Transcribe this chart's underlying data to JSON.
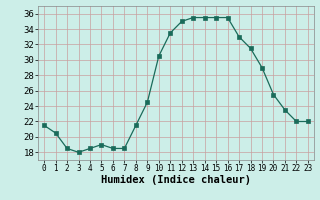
{
  "x": [
    0,
    1,
    2,
    3,
    4,
    5,
    6,
    7,
    8,
    9,
    10,
    11,
    12,
    13,
    14,
    15,
    16,
    17,
    18,
    19,
    20,
    21,
    22,
    23
  ],
  "y": [
    21.5,
    20.5,
    18.5,
    18.0,
    18.5,
    19.0,
    18.5,
    18.5,
    21.5,
    24.5,
    30.5,
    33.5,
    35.0,
    35.5,
    35.5,
    35.5,
    35.5,
    33.0,
    31.5,
    29.0,
    25.5,
    23.5,
    22.0,
    22.0
  ],
  "xlabel": "Humidex (Indice chaleur)",
  "ylim": [
    17,
    37
  ],
  "xlim": [
    -0.5,
    23.5
  ],
  "yticks": [
    18,
    20,
    22,
    24,
    26,
    28,
    30,
    32,
    34,
    36
  ],
  "xticks": [
    0,
    1,
    2,
    3,
    4,
    5,
    6,
    7,
    8,
    9,
    10,
    11,
    12,
    13,
    14,
    15,
    16,
    17,
    18,
    19,
    20,
    21,
    22,
    23
  ],
  "line_color": "#1a6b5a",
  "marker": "s",
  "marker_size": 2.2,
  "bg_color": "#cceee8",
  "grid_color": "#b0d8d0",
  "ytick_fontsize": 6.5,
  "xtick_fontsize": 5.5,
  "xlabel_fontsize": 7.5
}
